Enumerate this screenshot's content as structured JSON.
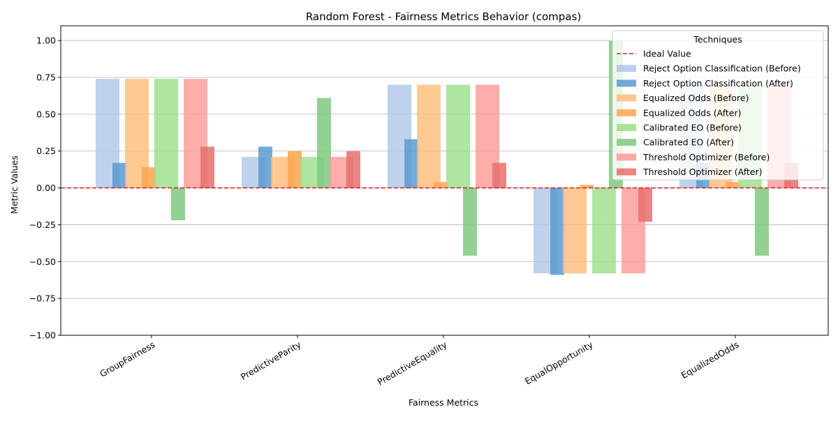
{
  "chart_data": {
    "type": "bar",
    "title": "Random Forest - Fairness Metrics Behavior (compas)",
    "xlabel": "Fairness Metrics",
    "ylabel": "Metric Values",
    "categories": [
      "GroupFairness",
      "PredictiveParity",
      "PredictiveEquality",
      "EqualOpportunity",
      "EqualizedOdds"
    ],
    "ylim": [
      -1.0,
      1.1
    ],
    "yticks": [
      -1.0,
      -0.75,
      -0.5,
      -0.25,
      0.0,
      0.25,
      0.5,
      0.75,
      1.0
    ],
    "ytick_labels": [
      "−1.00",
      "−0.75",
      "−0.50",
      "−0.25",
      "0.00",
      "0.25",
      "0.50",
      "0.75",
      "1.00"
    ],
    "grid": "horizontal",
    "reference_line": {
      "name": "Ideal Value",
      "value": 0.0,
      "color": "#d62728",
      "style": "dashed"
    },
    "legend": {
      "title": "Techniques",
      "placement": "top-right"
    },
    "techniques": [
      {
        "name_before": "Reject Option Classification (Before)",
        "name_after": "Reject Option Classification (After)",
        "color_before": "#aec7e8",
        "color_after": "#5b9bd1",
        "before": [
          0.74,
          0.21,
          0.7,
          -0.58,
          0.7
        ],
        "after": [
          0.17,
          0.28,
          0.33,
          -0.59,
          0.17
        ]
      },
      {
        "name_before": "Equalized Odds (Before)",
        "name_after": "Equalized Odds (After)",
        "color_before": "#ffbb78",
        "color_after": "#ffa54f",
        "before": [
          0.74,
          0.21,
          0.7,
          -0.58,
          0.7
        ],
        "after": [
          0.14,
          0.25,
          0.04,
          0.02,
          0.04
        ]
      },
      {
        "name_before": "Calibrated EO (Before)",
        "name_after": "Calibrated EO (After)",
        "color_before": "#98df8a",
        "color_after": "#7fc97f",
        "before": [
          0.74,
          0.21,
          0.7,
          -0.58,
          0.7
        ],
        "after": [
          -0.22,
          0.61,
          -0.46,
          1.0,
          -0.46
        ]
      },
      {
        "name_before": "Threshold Optimizer (Before)",
        "name_after": "Threshold Optimizer (After)",
        "color_before": "#ff9896",
        "color_after": "#e6706e",
        "before": [
          0.74,
          0.21,
          0.7,
          -0.58,
          0.7
        ],
        "after": [
          0.28,
          0.25,
          0.17,
          -0.23,
          0.17
        ]
      }
    ]
  }
}
